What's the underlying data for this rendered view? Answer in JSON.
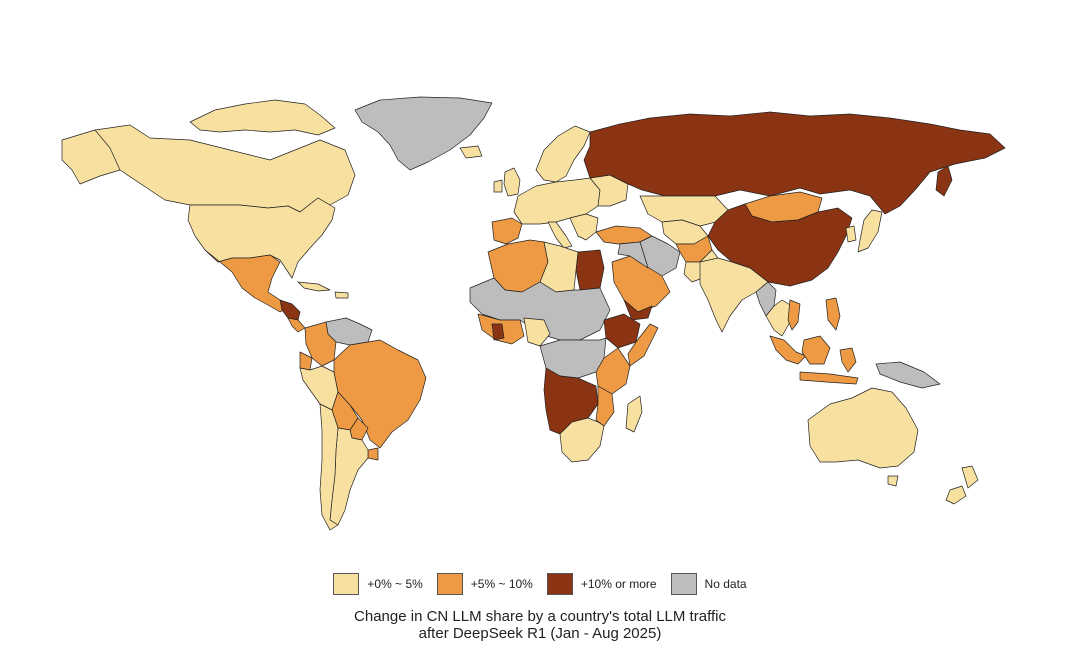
{
  "colors": {
    "low": "#f8e0a0",
    "mid": "#ee9a44",
    "high": "#8a3413",
    "nodata": "#bdbdbd",
    "border": "#222222"
  },
  "legend": [
    {
      "key": "low",
      "label": "+0% ~ 5%"
    },
    {
      "key": "mid",
      "label": "+5% ~ 10%"
    },
    {
      "key": "high",
      "label": "+10% or more"
    },
    {
      "key": "nodata",
      "label": "No data"
    }
  ],
  "caption": {
    "line1": "Change in CN LLM share by a country's total LLM traffic",
    "line2": "after DeepSeek R1 (Jan - Aug 2025)"
  }
}
